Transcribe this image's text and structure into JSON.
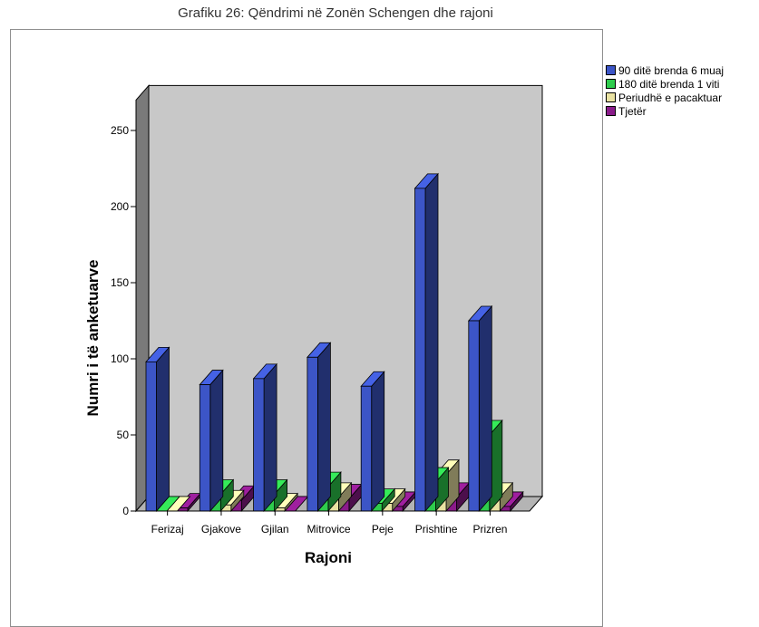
{
  "chart_data": {
    "type": "bar",
    "title": "Grafiku 26: Qëndrimi në Zonën Schengen dhe rajoni",
    "xlabel": "Rajoni",
    "ylabel": "Numri i të anketuarve",
    "categories": [
      "Ferizaj",
      "Gjakove",
      "Gjilan",
      "Mitrovice",
      "Peje",
      "Prishtine",
      "Prizren"
    ],
    "yticks": [
      0,
      50,
      100,
      150,
      200,
      250
    ],
    "ylim": [
      0,
      270
    ],
    "series": [
      {
        "name": "90 ditë brenda 6 muaj",
        "color": "#3c55c7",
        "values": [
          98,
          83,
          87,
          101,
          82,
          212,
          125
        ]
      },
      {
        "name": "180 ditë brenda 1 viti",
        "color": "#2ecc4d",
        "values": [
          0,
          11,
          11,
          16,
          5,
          19,
          50
        ]
      },
      {
        "name": "Periudhë e pacaktuar",
        "color": "#e9e2a2",
        "values": [
          0,
          4,
          2,
          9,
          5,
          24,
          9
        ]
      },
      {
        "name": "Tjetër",
        "color": "#8a1b8a",
        "values": [
          2,
          7,
          0,
          8,
          3,
          9,
          3
        ]
      }
    ],
    "grid": false,
    "legend_position": "right",
    "style": "3d-bar"
  }
}
